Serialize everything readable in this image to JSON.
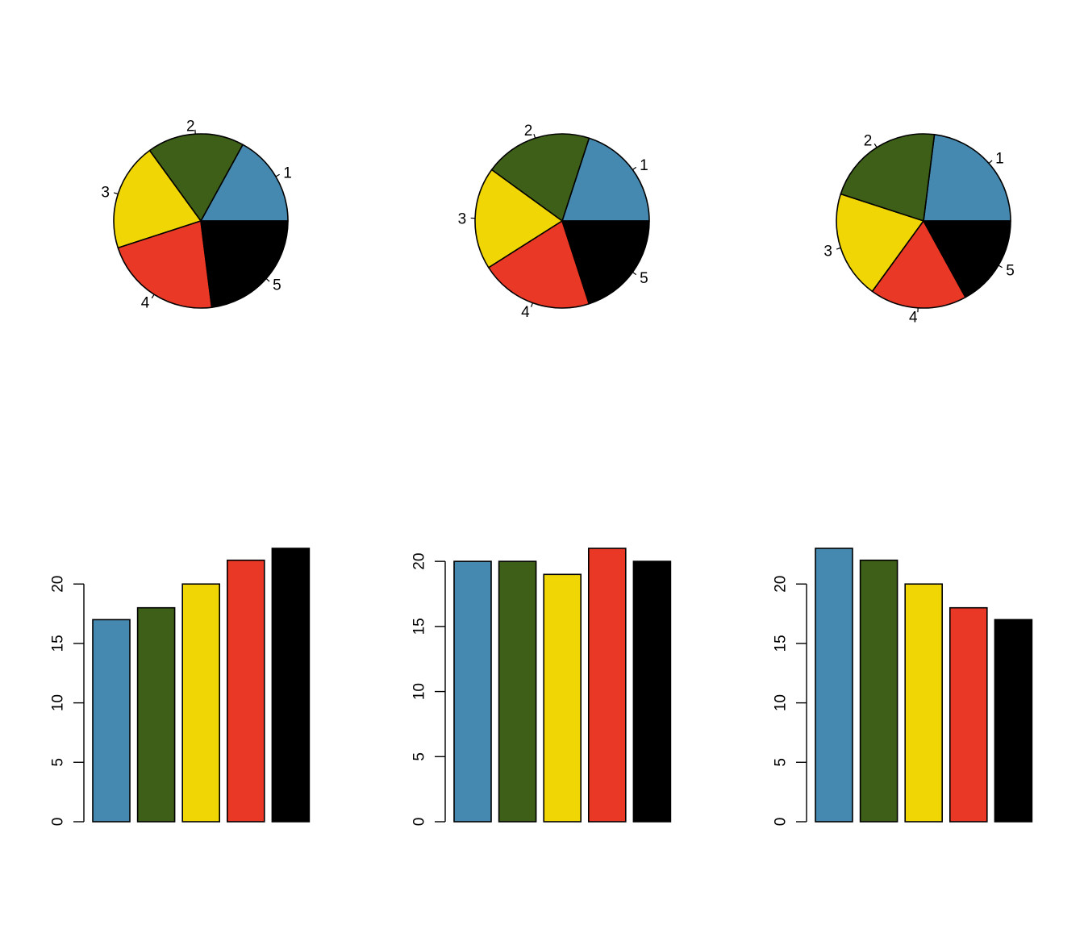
{
  "colors": [
    "#4689b0",
    "#3e5f17",
    "#f1d605",
    "#e93826",
    "#000000"
  ],
  "chart_data": [
    {
      "type": "pie",
      "labels": [
        "1",
        "2",
        "3",
        "4",
        "5"
      ],
      "values": [
        17,
        18,
        20,
        22,
        23
      ]
    },
    {
      "type": "pie",
      "labels": [
        "1",
        "2",
        "3",
        "4",
        "5"
      ],
      "values": [
        20,
        20,
        19,
        21,
        20
      ]
    },
    {
      "type": "pie",
      "labels": [
        "1",
        "2",
        "3",
        "4",
        "5"
      ],
      "values": [
        23,
        22,
        20,
        18,
        17
      ]
    },
    {
      "type": "bar",
      "values": [
        17,
        18,
        20,
        22,
        23
      ],
      "ylim": [
        0,
        23
      ],
      "yticks": [
        "0",
        "5",
        "10",
        "15",
        "20"
      ],
      "grid": false
    },
    {
      "type": "bar",
      "values": [
        20,
        20,
        19,
        21,
        20
      ],
      "ylim": [
        0,
        21
      ],
      "yticks": [
        "0",
        "5",
        "10",
        "15",
        "20"
      ],
      "grid": false
    },
    {
      "type": "bar",
      "values": [
        23,
        22,
        20,
        18,
        17
      ],
      "ylim": [
        0,
        23
      ],
      "yticks": [
        "0",
        "5",
        "10",
        "15",
        "20"
      ],
      "grid": false
    }
  ]
}
